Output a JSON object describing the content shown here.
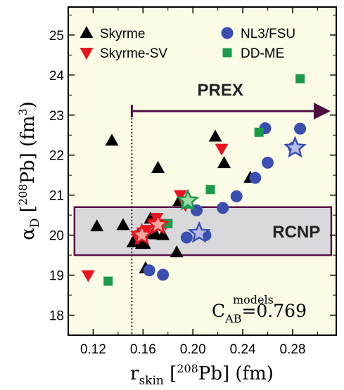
{
  "chart_data": {
    "type": "scatter",
    "xlabel_main": "r",
    "xlabel_sub": "skin",
    "xlabel_sup": "208",
    "xlabel_rest": "Pb] (fm)",
    "ylabel_main": "α",
    "ylabel_sub": "D",
    "ylabel_sup": "208",
    "ylabel_rest": "Pb] (fm",
    "ylabel_unit_sup": "3",
    "xlim": [
      0.1,
      0.315
    ],
    "ylim": [
      17.5,
      25.7
    ],
    "xticks": [
      "0.12",
      "0.16",
      "0.20",
      "0.24",
      "0.28"
    ],
    "xtick_values": [
      0.12,
      0.16,
      0.2,
      0.24,
      0.28
    ],
    "yticks": [
      "18",
      "19",
      "20",
      "21",
      "22",
      "23",
      "24",
      "25"
    ],
    "ytick_values": [
      18,
      19,
      20,
      21,
      22,
      23,
      24,
      25
    ],
    "legend": [
      "Skyrme",
      "Skyrme-SV",
      "NL3/FSU",
      "DD-ME"
    ],
    "colors": {
      "background": "#fbfbe6",
      "skyrme": "#000000",
      "skyrme_sv": "#e8141e",
      "nl3": "#3a4fb0",
      "ddme": "#1a9a4a",
      "prex": "#4d0f3f",
      "rcnp_fill": "#d9d9dc",
      "rcnp_border": "#5a1248",
      "star_fill": "#b9bce9"
    },
    "series": [
      {
        "name": "Skyrme",
        "marker": "triangle-up",
        "x": [
          0.123,
          0.135,
          0.144,
          0.152,
          0.156,
          0.159,
          0.161,
          0.162,
          0.166,
          0.168,
          0.17,
          0.172,
          0.176,
          0.187,
          0.189,
          0.218,
          0.225,
          0.246
        ],
        "y": [
          20.22,
          22.36,
          20.25,
          19.82,
          20.01,
          19.78,
          19.78,
          19.17,
          20.41,
          20.03,
          20.02,
          21.68,
          20.0,
          19.57,
          20.85,
          22.46,
          21.8,
          21.43
        ]
      },
      {
        "name": "Skyrme-SV",
        "marker": "triangle-down",
        "x": [
          0.116,
          0.156,
          0.158,
          0.16,
          0.163,
          0.169,
          0.171,
          0.178,
          0.19,
          0.194,
          0.223
        ],
        "y": [
          19.0,
          19.92,
          20.0,
          20.07,
          20.13,
          20.29,
          20.43,
          20.28,
          21.0,
          20.76,
          22.16
        ]
      },
      {
        "name": "NL3/FSU",
        "marker": "circle",
        "x": [
          0.165,
          0.176,
          0.195,
          0.203,
          0.21,
          0.224,
          0.235,
          0.25,
          0.26,
          0.258,
          0.281,
          0.286
        ],
        "y": [
          19.12,
          19.01,
          19.94,
          20.62,
          20.0,
          20.68,
          20.97,
          21.43,
          21.81,
          22.67,
          22.19,
          22.66
        ]
      },
      {
        "name": "DD-ME",
        "marker": "square",
        "x": [
          0.132,
          0.18,
          0.194,
          0.196,
          0.214,
          0.253,
          0.286
        ],
        "y": [
          18.85,
          20.29,
          20.85,
          20.78,
          21.14,
          22.57,
          23.91
        ]
      }
    ],
    "stars": [
      {
        "x": 0.159,
        "y": 20.0,
        "color": "red"
      },
      {
        "x": 0.172,
        "y": 20.26,
        "color": "red"
      },
      {
        "x": 0.196,
        "y": 20.86,
        "color": "green"
      },
      {
        "x": 0.205,
        "y": 20.05,
        "color": "blue"
      },
      {
        "x": 0.282,
        "y": 22.18,
        "color": "blue"
      }
    ],
    "prex_label": "PREX",
    "prex_start_x": 0.151,
    "prex_end_x": 0.31,
    "prex_y": 23.1,
    "rcnp_label": "RCNP",
    "rcnp_y": [
      19.5,
      20.7
    ],
    "rcnp_x": [
      0.105,
      0.311
    ],
    "correlation_label_main": "C",
    "correlation_sub": "AB",
    "correlation_sup": "models",
    "correlation_value": "=0.769"
  }
}
